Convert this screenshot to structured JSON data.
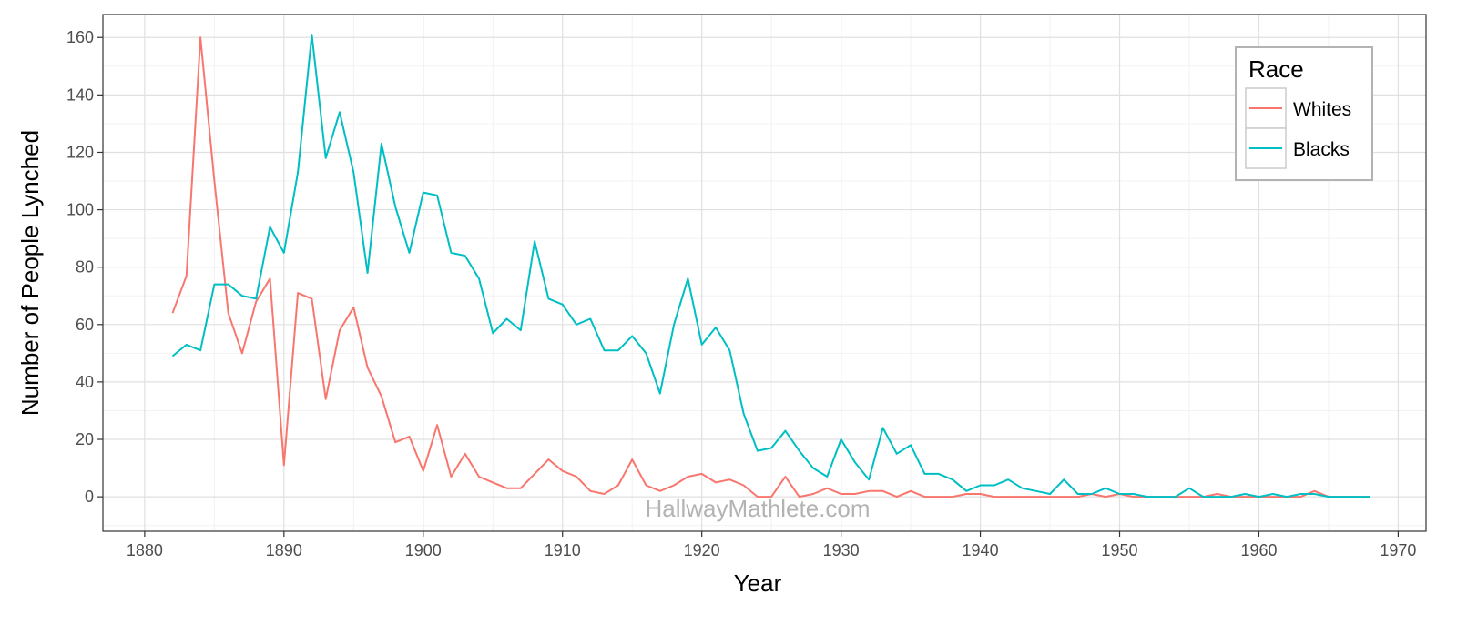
{
  "chart_data": {
    "type": "line",
    "xlabel": "Year",
    "ylabel": "Number of People Lynched",
    "xlim": [
      1877,
      1972
    ],
    "ylim": [
      -12,
      168
    ],
    "x_ticks": [
      1880,
      1890,
      1900,
      1910,
      1920,
      1930,
      1940,
      1950,
      1960,
      1970
    ],
    "y_ticks": [
      0,
      20,
      40,
      60,
      80,
      100,
      120,
      140,
      160
    ],
    "grid": true,
    "legend": {
      "title": "Race",
      "position": "top-right"
    },
    "watermark": "HallwayMathlete.com",
    "x": [
      1882,
      1883,
      1884,
      1885,
      1886,
      1887,
      1888,
      1889,
      1890,
      1891,
      1892,
      1893,
      1894,
      1895,
      1896,
      1897,
      1898,
      1899,
      1900,
      1901,
      1902,
      1903,
      1904,
      1905,
      1906,
      1907,
      1908,
      1909,
      1910,
      1911,
      1912,
      1913,
      1914,
      1915,
      1916,
      1917,
      1918,
      1919,
      1920,
      1921,
      1922,
      1923,
      1924,
      1925,
      1926,
      1927,
      1928,
      1929,
      1930,
      1931,
      1932,
      1933,
      1934,
      1935,
      1936,
      1937,
      1938,
      1939,
      1940,
      1941,
      1942,
      1943,
      1944,
      1945,
      1946,
      1947,
      1948,
      1949,
      1950,
      1951,
      1952,
      1953,
      1954,
      1955,
      1956,
      1957,
      1958,
      1959,
      1960,
      1961,
      1962,
      1963,
      1964,
      1965,
      1966,
      1967,
      1968
    ],
    "series": [
      {
        "name": "Whites",
        "color": "#f8766d",
        "values": [
          64,
          77,
          160,
          110,
          64,
          50,
          68,
          76,
          11,
          71,
          69,
          34,
          58,
          66,
          45,
          35,
          19,
          21,
          9,
          25,
          7,
          15,
          7,
          5,
          3,
          3,
          8,
          13,
          9,
          7,
          2,
          1,
          4,
          13,
          4,
          2,
          4,
          7,
          8,
          5,
          6,
          4,
          0,
          0,
          7,
          0,
          1,
          3,
          1,
          1,
          2,
          2,
          0,
          2,
          0,
          0,
          0,
          1,
          1,
          0,
          0,
          0,
          0,
          0,
          0,
          0,
          1,
          0,
          1,
          0,
          0,
          0,
          0,
          0,
          0,
          1,
          0,
          0,
          0,
          0,
          0,
          0,
          2,
          0,
          0,
          0,
          0
        ]
      },
      {
        "name": "Blacks",
        "color": "#00bfc4",
        "values": [
          49,
          53,
          51,
          74,
          74,
          70,
          69,
          94,
          85,
          113,
          161,
          118,
          134,
          113,
          78,
          123,
          101,
          85,
          106,
          105,
          85,
          84,
          76,
          57,
          62,
          58,
          89,
          69,
          67,
          60,
          62,
          51,
          51,
          56,
          50,
          36,
          60,
          76,
          53,
          59,
          51,
          29,
          16,
          17,
          23,
          16,
          10,
          7,
          20,
          12,
          6,
          24,
          15,
          18,
          8,
          8,
          6,
          2,
          4,
          4,
          6,
          3,
          2,
          1,
          6,
          1,
          1,
          3,
          1,
          1,
          0,
          0,
          0,
          3,
          0,
          0,
          0,
          1,
          0,
          1,
          0,
          1,
          1,
          0,
          0,
          0,
          0
        ]
      }
    ]
  }
}
